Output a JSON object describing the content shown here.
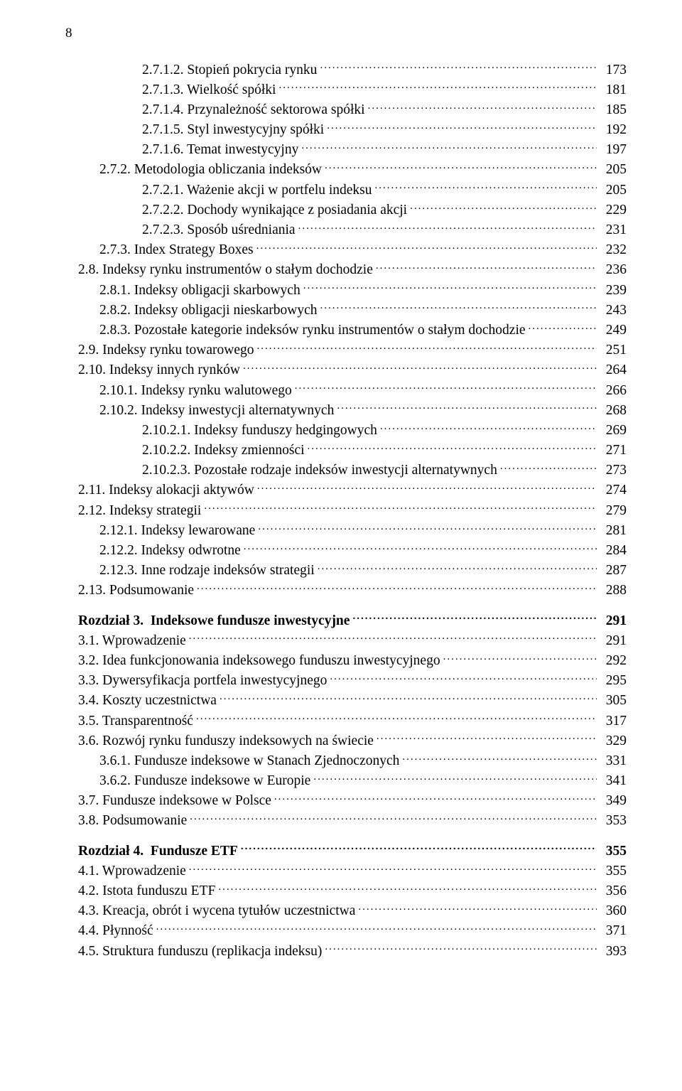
{
  "page_number": "8",
  "entries": [
    {
      "indent": "l3",
      "label": "2.7.1.2. Stopień pokrycia rynku",
      "page": "173"
    },
    {
      "indent": "l3",
      "label": "2.7.1.3. Wielkość spółki",
      "page": "181"
    },
    {
      "indent": "l3",
      "label": "2.7.1.4. Przynależność sektorowa spółki",
      "page": "185"
    },
    {
      "indent": "l3",
      "label": "2.7.1.5. Styl inwestycyjny spółki",
      "page": "192"
    },
    {
      "indent": "l3",
      "label": "2.7.1.6. Temat inwestycyjny",
      "page": "197"
    },
    {
      "indent": "l2",
      "label": "2.7.2. Metodologia obliczania indeksów",
      "page": "205"
    },
    {
      "indent": "l3",
      "label": "2.7.2.1. Ważenie akcji w portfelu indeksu",
      "page": "205"
    },
    {
      "indent": "l3",
      "label": "2.7.2.2. Dochody wynikające z posiadania akcji",
      "page": "229"
    },
    {
      "indent": "l3",
      "label": "2.7.2.3. Sposób uśredniania",
      "page": "231"
    },
    {
      "indent": "l2",
      "label": "2.7.3. Index Strategy Boxes",
      "page": "232"
    },
    {
      "indent": "l1",
      "label": "2.8. Indeksy rynku instrumentów o stałym dochodzie",
      "page": "236"
    },
    {
      "indent": "l2",
      "label": "2.8.1. Indeksy obligacji skarbowych",
      "page": "239"
    },
    {
      "indent": "l2",
      "label": "2.8.2. Indeksy obligacji nieskarbowych",
      "page": "243"
    },
    {
      "indent": "l2",
      "label": "2.8.3. Pozostałe kategorie indeksów rynku instrumentów o stałym dochodzie",
      "page": "249"
    },
    {
      "indent": "l1",
      "label": "2.9. Indeksy rynku towarowego",
      "page": "251"
    },
    {
      "indent": "l1",
      "label": "2.10. Indeksy innych rynków",
      "page": "264"
    },
    {
      "indent": "l2",
      "label": "2.10.1. Indeksy rynku walutowego",
      "page": "266"
    },
    {
      "indent": "l2",
      "label": "2.10.2. Indeksy inwestycji alternatywnych",
      "page": "268"
    },
    {
      "indent": "l3",
      "label": "2.10.2.1. Indeksy funduszy hedgingowych",
      "page": "269"
    },
    {
      "indent": "l3",
      "label": "2.10.2.2. Indeksy zmienności",
      "page": "271"
    },
    {
      "indent": "l3",
      "label": "2.10.2.3. Pozostałe rodzaje indeksów inwestycji alternatywnych",
      "page": "273"
    },
    {
      "indent": "l1",
      "label": "2.11. Indeksy alokacji aktywów",
      "page": "274"
    },
    {
      "indent": "l1",
      "label": "2.12. Indeksy strategii",
      "page": "279"
    },
    {
      "indent": "l2",
      "label": "2.12.1. Indeksy lewarowane",
      "page": "281"
    },
    {
      "indent": "l2",
      "label": "2.12.2. Indeksy odwrotne",
      "page": "284"
    },
    {
      "indent": "l2",
      "label": "2.12.3. Inne rodzaje indeksów strategii",
      "page": "287"
    },
    {
      "indent": "l1",
      "label": "2.13. Podsumowanie",
      "page": "288"
    },
    {
      "indent": "l1",
      "chapter": true,
      "prefix": "Rozdział 3.",
      "title": "Indeksowe fundusze inwestycyjne",
      "page": "291"
    },
    {
      "indent": "l1",
      "label": "3.1. Wprowadzenie",
      "page": "291"
    },
    {
      "indent": "l1",
      "label": "3.2. Idea funkcjonowania indeksowego funduszu inwestycyjnego",
      "page": "292"
    },
    {
      "indent": "l1",
      "label": "3.3. Dywersyfikacja portfela inwestycyjnego",
      "page": "295"
    },
    {
      "indent": "l1",
      "label": "3.4. Koszty uczestnictwa",
      "page": "305"
    },
    {
      "indent": "l1",
      "label": "3.5. Transparentność",
      "page": "317"
    },
    {
      "indent": "l1",
      "label": "3.6. Rozwój rynku funduszy indeksowych na świecie",
      "page": "329"
    },
    {
      "indent": "l2",
      "label": "3.6.1. Fundusze indeksowe w Stanach Zjednoczonych",
      "page": "331"
    },
    {
      "indent": "l2",
      "label": "3.6.2. Fundusze indeksowe w Europie",
      "page": "341"
    },
    {
      "indent": "l1",
      "label": "3.7. Fundusze indeksowe w Polsce",
      "page": "349"
    },
    {
      "indent": "l1",
      "label": "3.8. Podsumowanie",
      "page": "353"
    },
    {
      "indent": "l1",
      "chapter": true,
      "prefix": "Rozdział 4.",
      "title": "Fundusze ETF",
      "page": "355"
    },
    {
      "indent": "l1",
      "label": "4.1. Wprowadzenie",
      "page": "355"
    },
    {
      "indent": "l1",
      "label": "4.2. Istota funduszu ETF",
      "page": "356"
    },
    {
      "indent": "l1",
      "label": "4.3. Kreacja, obrót i wycena tytułów uczestnictwa",
      "page": "360"
    },
    {
      "indent": "l1",
      "label": "4.4. Płynność",
      "page": "371"
    },
    {
      "indent": "l1",
      "label": "4.5. Struktura funduszu (replikacja indeksu)",
      "page": "393"
    }
  ]
}
